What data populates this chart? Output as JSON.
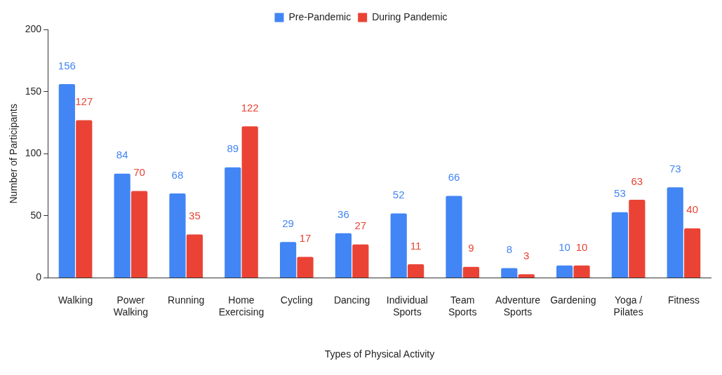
{
  "chart_data": {
    "type": "bar",
    "xlabel": "Types of Physical Activity",
    "ylabel": "Number of Participants",
    "categories": [
      "Walking",
      "Power Walking",
      "Running",
      "Home Exercising",
      "Cycling",
      "Dancing",
      "Individual Sports",
      "Team Sports",
      "Adventure Sports",
      "Gardening",
      "Yoga / Pilates",
      "Fitness"
    ],
    "series": [
      {
        "name": "Pre-Pandemic",
        "color": "#4285f4",
        "values": [
          156,
          84,
          68,
          89,
          29,
          36,
          52,
          66,
          8,
          10,
          53,
          73
        ]
      },
      {
        "name": "During Pandemic",
        "color": "#ea4335",
        "values": [
          127,
          70,
          35,
          122,
          17,
          27,
          11,
          9,
          3,
          10,
          63,
          40
        ]
      }
    ],
    "ylim": [
      0,
      200
    ],
    "yticks": [
      0,
      50,
      100,
      150,
      200
    ],
    "grid": false,
    "legend": "top",
    "data_labels": true
  }
}
